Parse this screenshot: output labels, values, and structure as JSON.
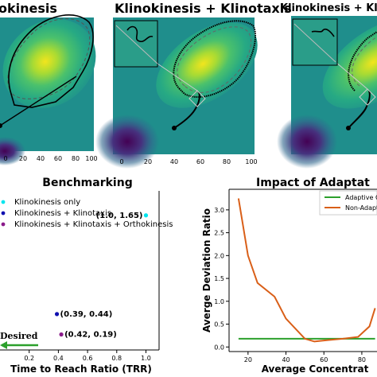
{
  "heatmaps": {
    "titles": [
      "okinesis",
      "Klinokinesis + Klinotaxis",
      "Klinokinesis + Klinotaxis"
    ],
    "xticks": [
      "0",
      "20",
      "40",
      "60",
      "80",
      "100"
    ]
  },
  "chart_data": [
    {
      "type": "scatter",
      "title": "Benchmarking",
      "xlabel": "Time to Reach Ratio (TRR)",
      "ylabel": "",
      "xticks": [
        "0.2",
        "0.4",
        "0.6",
        "0.8",
        "1.0"
      ],
      "xlim": [
        0.0,
        1.09
      ],
      "ylim": [
        0.0,
        1.95
      ],
      "legend_position": "top-left",
      "series": [
        {
          "name": "Klinokinesis only",
          "color": "#00e5ee",
          "points": [
            {
              "x": 1.0,
              "y": 1.65,
              "label": "(1.0, 1.65)"
            }
          ]
        },
        {
          "name": "Klinokinesis + Klinotaxis",
          "color": "#1010b0",
          "points": [
            {
              "x": 0.39,
              "y": 0.44,
              "label": "(0.39, 0.44)"
            }
          ]
        },
        {
          "name": "Klinokinesis + Klinotaxis + Orthokinesis",
          "color": "#8a1a8a",
          "points": [
            {
              "x": 0.42,
              "y": 0.19,
              "label": "(0.42, 0.19)"
            }
          ]
        }
      ],
      "annotation": {
        "text": "Desired"
      }
    },
    {
      "type": "line",
      "title": "Impact of Adaptat",
      "xlabel": "Average Concentrat",
      "ylabel": "Averge Deviation Ratio",
      "xticks": [
        20,
        40,
        60,
        80
      ],
      "yticks": [
        "0.0",
        "0.5",
        "1.0",
        "1.5",
        "2.0",
        "2.5",
        "3.0"
      ],
      "xlim": [
        10,
        88
      ],
      "ylim": [
        -0.1,
        3.45
      ],
      "legend_position": "top-right",
      "series": [
        {
          "name": "Adaptive C",
          "color": "#2ca02c",
          "x": [
            15,
            87
          ],
          "y": [
            0.18,
            0.18
          ]
        },
        {
          "name": "Non-Adapt",
          "color": "#d95f18",
          "x": [
            15,
            20,
            25,
            34,
            40,
            50,
            55,
            62,
            70,
            78,
            84,
            87
          ],
          "y": [
            3.25,
            2.0,
            1.4,
            1.1,
            0.62,
            0.18,
            0.12,
            0.15,
            0.18,
            0.22,
            0.45,
            0.85
          ]
        }
      ]
    }
  ]
}
